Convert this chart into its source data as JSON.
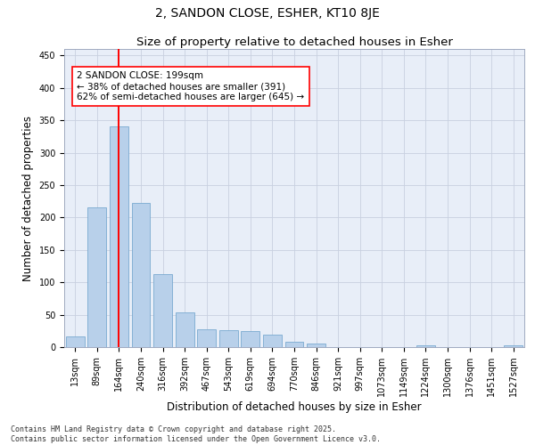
{
  "title": "2, SANDON CLOSE, ESHER, KT10 8JE",
  "subtitle": "Size of property relative to detached houses in Esher",
  "xlabel": "Distribution of detached houses by size in Esher",
  "ylabel": "Number of detached properties",
  "bar_color": "#b8d0ea",
  "bar_edge_color": "#7aaad0",
  "background_color": "#e8eef8",
  "grid_color": "#c8d0e0",
  "categories": [
    "13sqm",
    "89sqm",
    "164sqm",
    "240sqm",
    "316sqm",
    "392sqm",
    "467sqm",
    "543sqm",
    "619sqm",
    "694sqm",
    "770sqm",
    "846sqm",
    "921sqm",
    "997sqm",
    "1073sqm",
    "1149sqm",
    "1224sqm",
    "1300sqm",
    "1376sqm",
    "1451sqm",
    "1527sqm"
  ],
  "values": [
    16,
    215,
    340,
    222,
    112,
    54,
    27,
    26,
    25,
    19,
    8,
    6,
    0,
    0,
    0,
    0,
    3,
    0,
    0,
    0,
    3
  ],
  "red_line_index": 2,
  "annotation_text": "2 SANDON CLOSE: 199sqm\n← 38% of detached houses are smaller (391)\n62% of semi-detached houses are larger (645) →",
  "ylim": [
    0,
    460
  ],
  "yticks": [
    0,
    50,
    100,
    150,
    200,
    250,
    300,
    350,
    400,
    450
  ],
  "footer_line1": "Contains HM Land Registry data © Crown copyright and database right 2025.",
  "footer_line2": "Contains public sector information licensed under the Open Government Licence v3.0.",
  "title_fontsize": 10,
  "subtitle_fontsize": 9.5,
  "tick_fontsize": 7,
  "label_fontsize": 8.5,
  "annotation_fontsize": 7.5,
  "footer_fontsize": 6
}
